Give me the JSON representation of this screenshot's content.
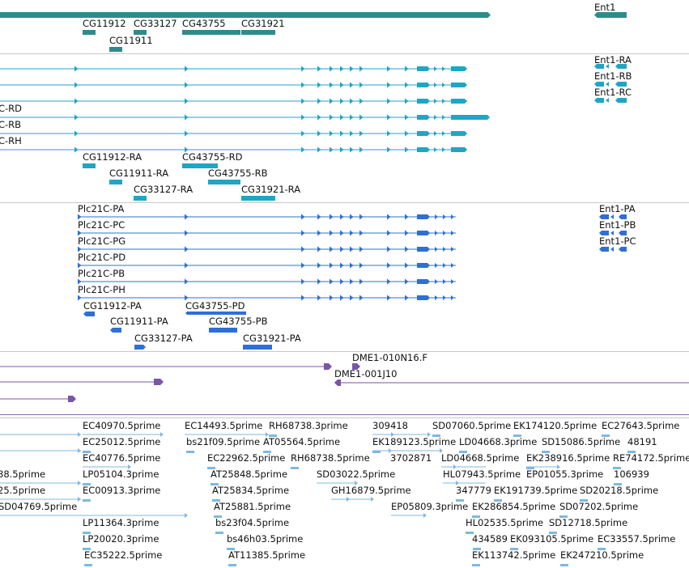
{
  "colors": {
    "gene": "#2e8b8b",
    "transcript": "#1fa6c4",
    "protein": "#2f6fd6",
    "clone": "#7b56a8",
    "est": "#7fb8e0",
    "separator": "#c8c8c8"
  },
  "genes": {
    "labels": [
      "Ent1",
      "CG11912",
      "CG33127",
      "CG43755",
      "CG31921",
      "CG11911"
    ]
  },
  "transcripts": {
    "labels": [
      "Ent1-RA",
      "Ent1-RB",
      "Ent1-RC",
      "C-RD",
      "C-RB",
      "C-RH",
      "CG11912-RA",
      "CG43755-RD",
      "CG11911-RA",
      "CG43755-RB",
      "CG33127-RA",
      "CG31921-RA"
    ]
  },
  "proteins": {
    "labels": [
      "Plc21C-PA",
      "Plc21C-PC",
      "Plc21C-PG",
      "Plc21C-PD",
      "Plc21C-PB",
      "Plc21C-PH",
      "Ent1-PA",
      "Ent1-PB",
      "Ent1-PC",
      "CG11912-PA",
      "CG43755-PD",
      "CG11911-PA",
      "CG43755-PB",
      "CG33127-PA",
      "CG31921-PA"
    ]
  },
  "clones": {
    "labels": [
      "DME1-010N16.F",
      "DME1-001J10"
    ]
  },
  "ests": {
    "labels": [
      "EC40970.5prime",
      "EC14493.5prime",
      "RH68738.3prime",
      "309418",
      "SD07060.5prime",
      "EK174120.5prime",
      "EC27643.5prime",
      "EC25012.5prime",
      "bs21f09.5prime",
      "AT05564.5prime",
      "EK189123.5prime",
      "LD04668.3prime",
      "SD15086.5prime",
      "48191",
      "EC40776.5prime",
      "EC22962.5prime",
      "RH68738.5prime",
      "3702871",
      "LD04668.5prime",
      "EK238916.5prime",
      "RE74172.5prime",
      "88.5prime",
      "LP05104.3prime",
      "AT25848.5prime",
      "SD03022.5prime",
      "HL07943.5prime",
      "EP01055.3prime",
      "106939",
      "25.5prime",
      "EC00913.3prime",
      "AT25834.5prime",
      "GH16879.5prime",
      "347779",
      "EK191739.5prime",
      "SD20218.5prime",
      "SD04769.5prime",
      "AT25881.5prime",
      "EP05809.3prime",
      "EK286854.5prime",
      "SD07202.5prime",
      "LP11364.3prime",
      "bs23f04.5prime",
      "HL02535.5prime",
      "SD12718.5prime",
      "LP20020.3prime",
      "bs46h03.5prime",
      "434589",
      "EK093105.5prime",
      "EC33557.5prime",
      "EC35222.5prime",
      "AT11385.5prime",
      "EK113742.5prime",
      "EK247210.5prime"
    ]
  }
}
